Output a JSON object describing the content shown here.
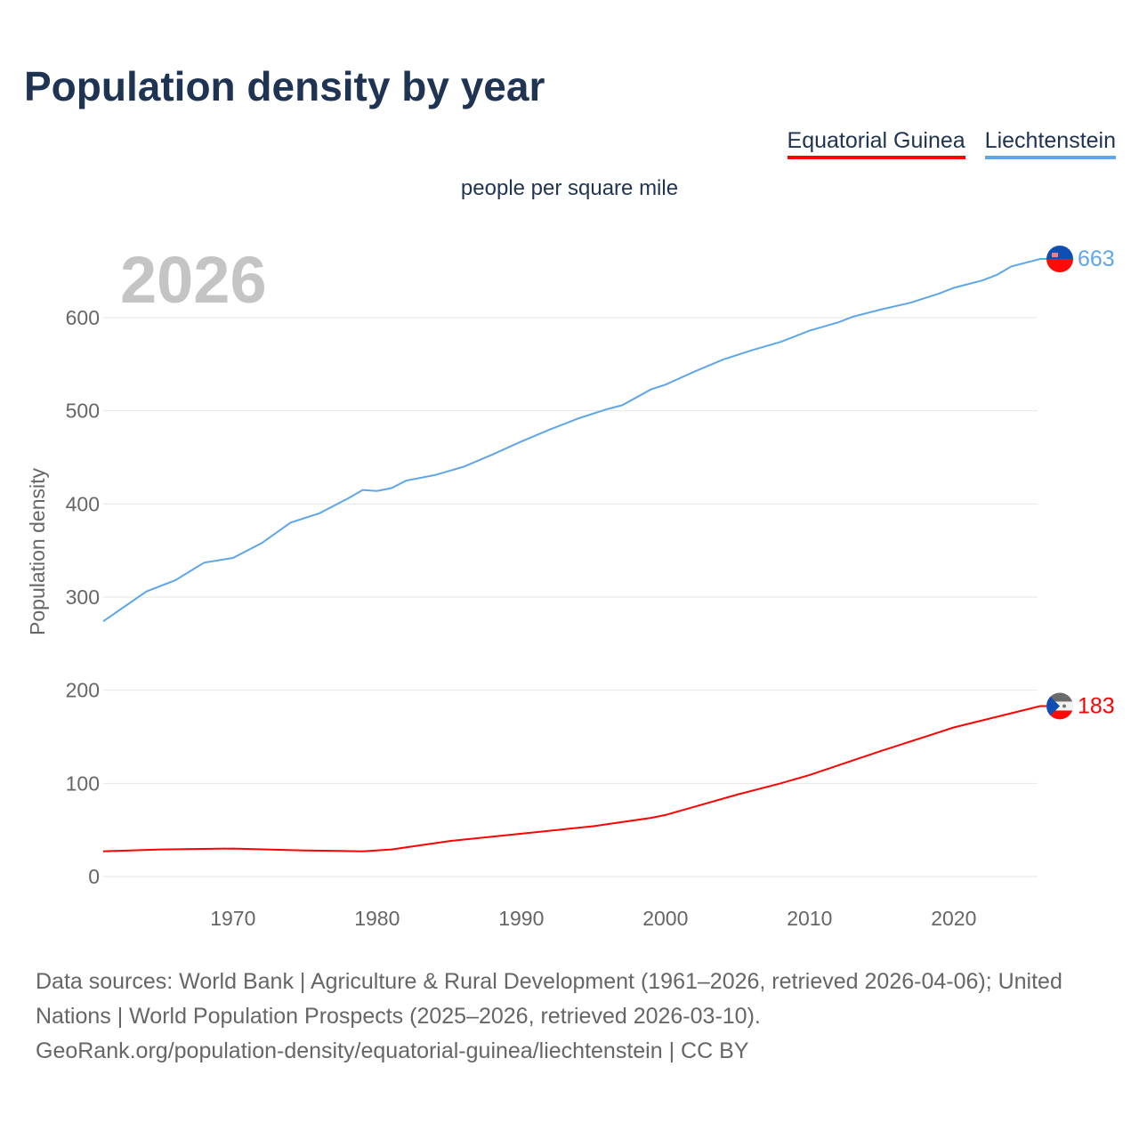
{
  "title": "Population density by year",
  "subtitle": "people per square mile",
  "year_watermark": "2026",
  "legend": [
    {
      "label": "Equatorial Guinea",
      "color": "#ff0000"
    },
    {
      "label": "Liechtenstein",
      "color": "#5ea6ea"
    }
  ],
  "footer": {
    "line1": "Data sources: World Bank | Agriculture & Rural Development (1961–2026, retrieved 2026-04-06); United Nations | World Population Prospects (2025–2026, retrieved 2026-03-10).",
    "line2": "GeoRank.org/population-density/equatorial-guinea/liechtenstein | CC BY"
  },
  "chart_data": {
    "type": "line",
    "title": "Population density by year",
    "xlabel": "",
    "ylabel": "Population density",
    "xlim": [
      1961,
      2026
    ],
    "ylim": [
      0,
      650
    ],
    "xticks": [
      1970,
      1980,
      1990,
      2000,
      2010,
      2020
    ],
    "yticks": [
      0,
      100,
      200,
      300,
      400,
      500,
      600
    ],
    "grid": true,
    "legend_position": "top-right",
    "series": [
      {
        "name": "Liechtenstein",
        "color": "#5ea6ea",
        "end_label": "663",
        "points": [
          [
            1961,
            274
          ],
          [
            1964,
            306
          ],
          [
            1966,
            318
          ],
          [
            1968,
            337
          ],
          [
            1970,
            342
          ],
          [
            1972,
            358
          ],
          [
            1974,
            380
          ],
          [
            1976,
            390
          ],
          [
            1978,
            406
          ],
          [
            1979,
            415
          ],
          [
            1980,
            414
          ],
          [
            1981,
            417
          ],
          [
            1982,
            425
          ],
          [
            1984,
            431
          ],
          [
            1986,
            440
          ],
          [
            1988,
            453
          ],
          [
            1990,
            467
          ],
          [
            1992,
            480
          ],
          [
            1994,
            492
          ],
          [
            1996,
            502
          ],
          [
            1997,
            506
          ],
          [
            1999,
            523
          ],
          [
            2000,
            528
          ],
          [
            2002,
            542
          ],
          [
            2004,
            555
          ],
          [
            2006,
            565
          ],
          [
            2008,
            574
          ],
          [
            2010,
            586
          ],
          [
            2012,
            595
          ],
          [
            2013,
            601
          ],
          [
            2015,
            609
          ],
          [
            2017,
            616
          ],
          [
            2019,
            626
          ],
          [
            2020,
            632
          ],
          [
            2022,
            640
          ],
          [
            2023,
            646
          ],
          [
            2024,
            655
          ],
          [
            2026,
            663
          ]
        ]
      },
      {
        "name": "Equatorial Guinea",
        "color": "#ff0000",
        "end_label": "183",
        "points": [
          [
            1961,
            27
          ],
          [
            1965,
            29
          ],
          [
            1970,
            30
          ],
          [
            1975,
            28
          ],
          [
            1979,
            27
          ],
          [
            1981,
            29
          ],
          [
            1985,
            38
          ],
          [
            1990,
            46
          ],
          [
            1995,
            54
          ],
          [
            1999,
            63
          ],
          [
            2000,
            66
          ],
          [
            2005,
            88
          ],
          [
            2008,
            100
          ],
          [
            2010,
            109
          ],
          [
            2015,
            135
          ],
          [
            2019,
            155
          ],
          [
            2020,
            160
          ],
          [
            2026,
            183
          ]
        ]
      }
    ]
  }
}
